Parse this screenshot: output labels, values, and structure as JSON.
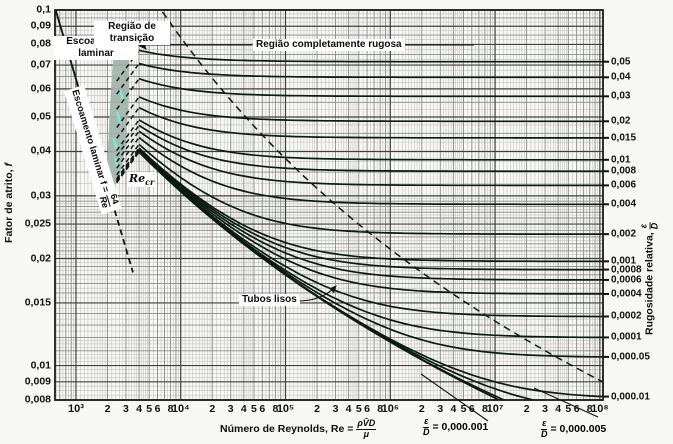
{
  "chart_data": {
    "type": "line",
    "description": "Diagrama de Moody - fator de atrito vs numero de Reynolds",
    "x_axis": {
      "label_prefix": "Número de Reynolds, Re =",
      "label_frac_num": "ρV̄D",
      "label_frac_den": "μ",
      "scale": "log",
      "range": [
        631,
        107000000
      ],
      "decade_ticks": [
        {
          "value": 1000,
          "label": "10³"
        },
        {
          "value": 10000,
          "label": "10⁴"
        },
        {
          "value": 100000,
          "label": "10⁵"
        },
        {
          "value": 1000000,
          "label": "10⁶"
        },
        {
          "value": 10000000,
          "label": "10⁷"
        },
        {
          "value": 100000000,
          "label": "10⁸"
        }
      ],
      "minor_tick_labels": [
        "2",
        "3",
        "4",
        "5",
        "6",
        "8"
      ],
      "minor_tick_multipliers": [
        2,
        3,
        4,
        5,
        6,
        8
      ]
    },
    "y_axis": {
      "label_prefix": "Fator de atrito,",
      "label_var": "f",
      "scale": "log",
      "range": [
        0.008,
        0.1
      ],
      "ticks": [
        {
          "value": 0.1,
          "label": "0,1"
        },
        {
          "value": 0.09,
          "label": "0,09"
        },
        {
          "value": 0.08,
          "label": "0,08"
        },
        {
          "value": 0.07,
          "label": "0,07"
        },
        {
          "value": 0.06,
          "label": "0,06"
        },
        {
          "value": 0.05,
          "label": "0,05"
        },
        {
          "value": 0.04,
          "label": "0,04"
        },
        {
          "value": 0.03,
          "label": "0,03"
        },
        {
          "value": 0.025,
          "label": "0,025"
        },
        {
          "value": 0.02,
          "label": "0,02"
        },
        {
          "value": 0.015,
          "label": "0,015"
        },
        {
          "value": 0.01,
          "label": "0,01"
        },
        {
          "value": 0.009,
          "label": "0,009"
        },
        {
          "value": 0.008,
          "label": "0,008"
        }
      ]
    },
    "right_axis": {
      "label_prefix": "Rugosidade relativa,",
      "label_frac_num": "ε",
      "label_frac_den": "D",
      "ticks": [
        {
          "roughness": 0.05,
          "label": "0,05"
        },
        {
          "roughness": 0.04,
          "label": "0,04"
        },
        {
          "roughness": 0.03,
          "label": "0,03"
        },
        {
          "roughness": 0.02,
          "label": "0,02"
        },
        {
          "roughness": 0.015,
          "label": "0,015"
        },
        {
          "roughness": 0.01,
          "label": "0,01"
        },
        {
          "roughness": 0.008,
          "label": "0,008"
        },
        {
          "roughness": 0.006,
          "label": "0,006"
        },
        {
          "roughness": 0.004,
          "label": "0,004"
        },
        {
          "roughness": 0.002,
          "label": "0,002"
        },
        {
          "roughness": 0.001,
          "label": "0,001"
        },
        {
          "roughness": 0.0008,
          "label": "0,0008"
        },
        {
          "roughness": 0.0006,
          "label": "0,0006"
        },
        {
          "roughness": 0.0004,
          "label": "0,0004"
        },
        {
          "roughness": 0.0002,
          "label": "0,0002"
        },
        {
          "roughness": 0.0001,
          "label": "0,0001"
        },
        {
          "roughness": 5e-05,
          "label": "0,000.05"
        },
        {
          "roughness": 1e-05,
          "label": "0,000.01"
        }
      ]
    },
    "series": {
      "laminar": {
        "equation_prefix": "Escoamento laminar f =",
        "equation_num": "64",
        "equation_den": "Re",
        "solid_re_range": [
          640,
          2200
        ],
        "dashed_re_range": [
          2200,
          3500
        ]
      },
      "roughness_curves": [
        0.05,
        0.04,
        0.03,
        0.02,
        0.015,
        0.01,
        0.008,
        0.006,
        0.004,
        0.002,
        0.001,
        0.0008,
        0.0006,
        0.0004,
        0.0002,
        0.0001,
        5e-05,
        1e-05,
        5e-06,
        1e-06
      ],
      "smooth_curve_roughness": 0,
      "turbulent_re_range": [
        4000,
        107000000
      ],
      "critical_re_range": [
        2300,
        4000
      ]
    },
    "boundary_dashed": {
      "description": "limite da região completamente rugosa",
      "constant": 200
    },
    "grid": true,
    "legend_position": "right-axis"
  },
  "annotations": {
    "laminar_region": "Escoamento laminar",
    "transition_region": "Região de transição",
    "fully_rough_region": "Região completamente rugosa",
    "smooth_pipes": "Tubos lisos",
    "re_cr_base": "Re",
    "re_cr_sub": "cr",
    "ed_small_1_num": "ε",
    "ed_small_1_den": "D",
    "ed_small_1_value": "= 0,000.001",
    "ed_small_2_num": "ε",
    "ed_small_2_den": "D",
    "ed_small_2_value": "= 0,000.005"
  },
  "colors": {
    "curve": "#0c1a14",
    "grid_strong": "#3f3f3f",
    "grid_medium": "#8a8a8a",
    "grid_fine": "#c2c2c2",
    "transition_fill": "#a3b2ab",
    "transition_highlight": "#7fe9d6",
    "background": "#f7f7f4",
    "text": "#111111"
  }
}
